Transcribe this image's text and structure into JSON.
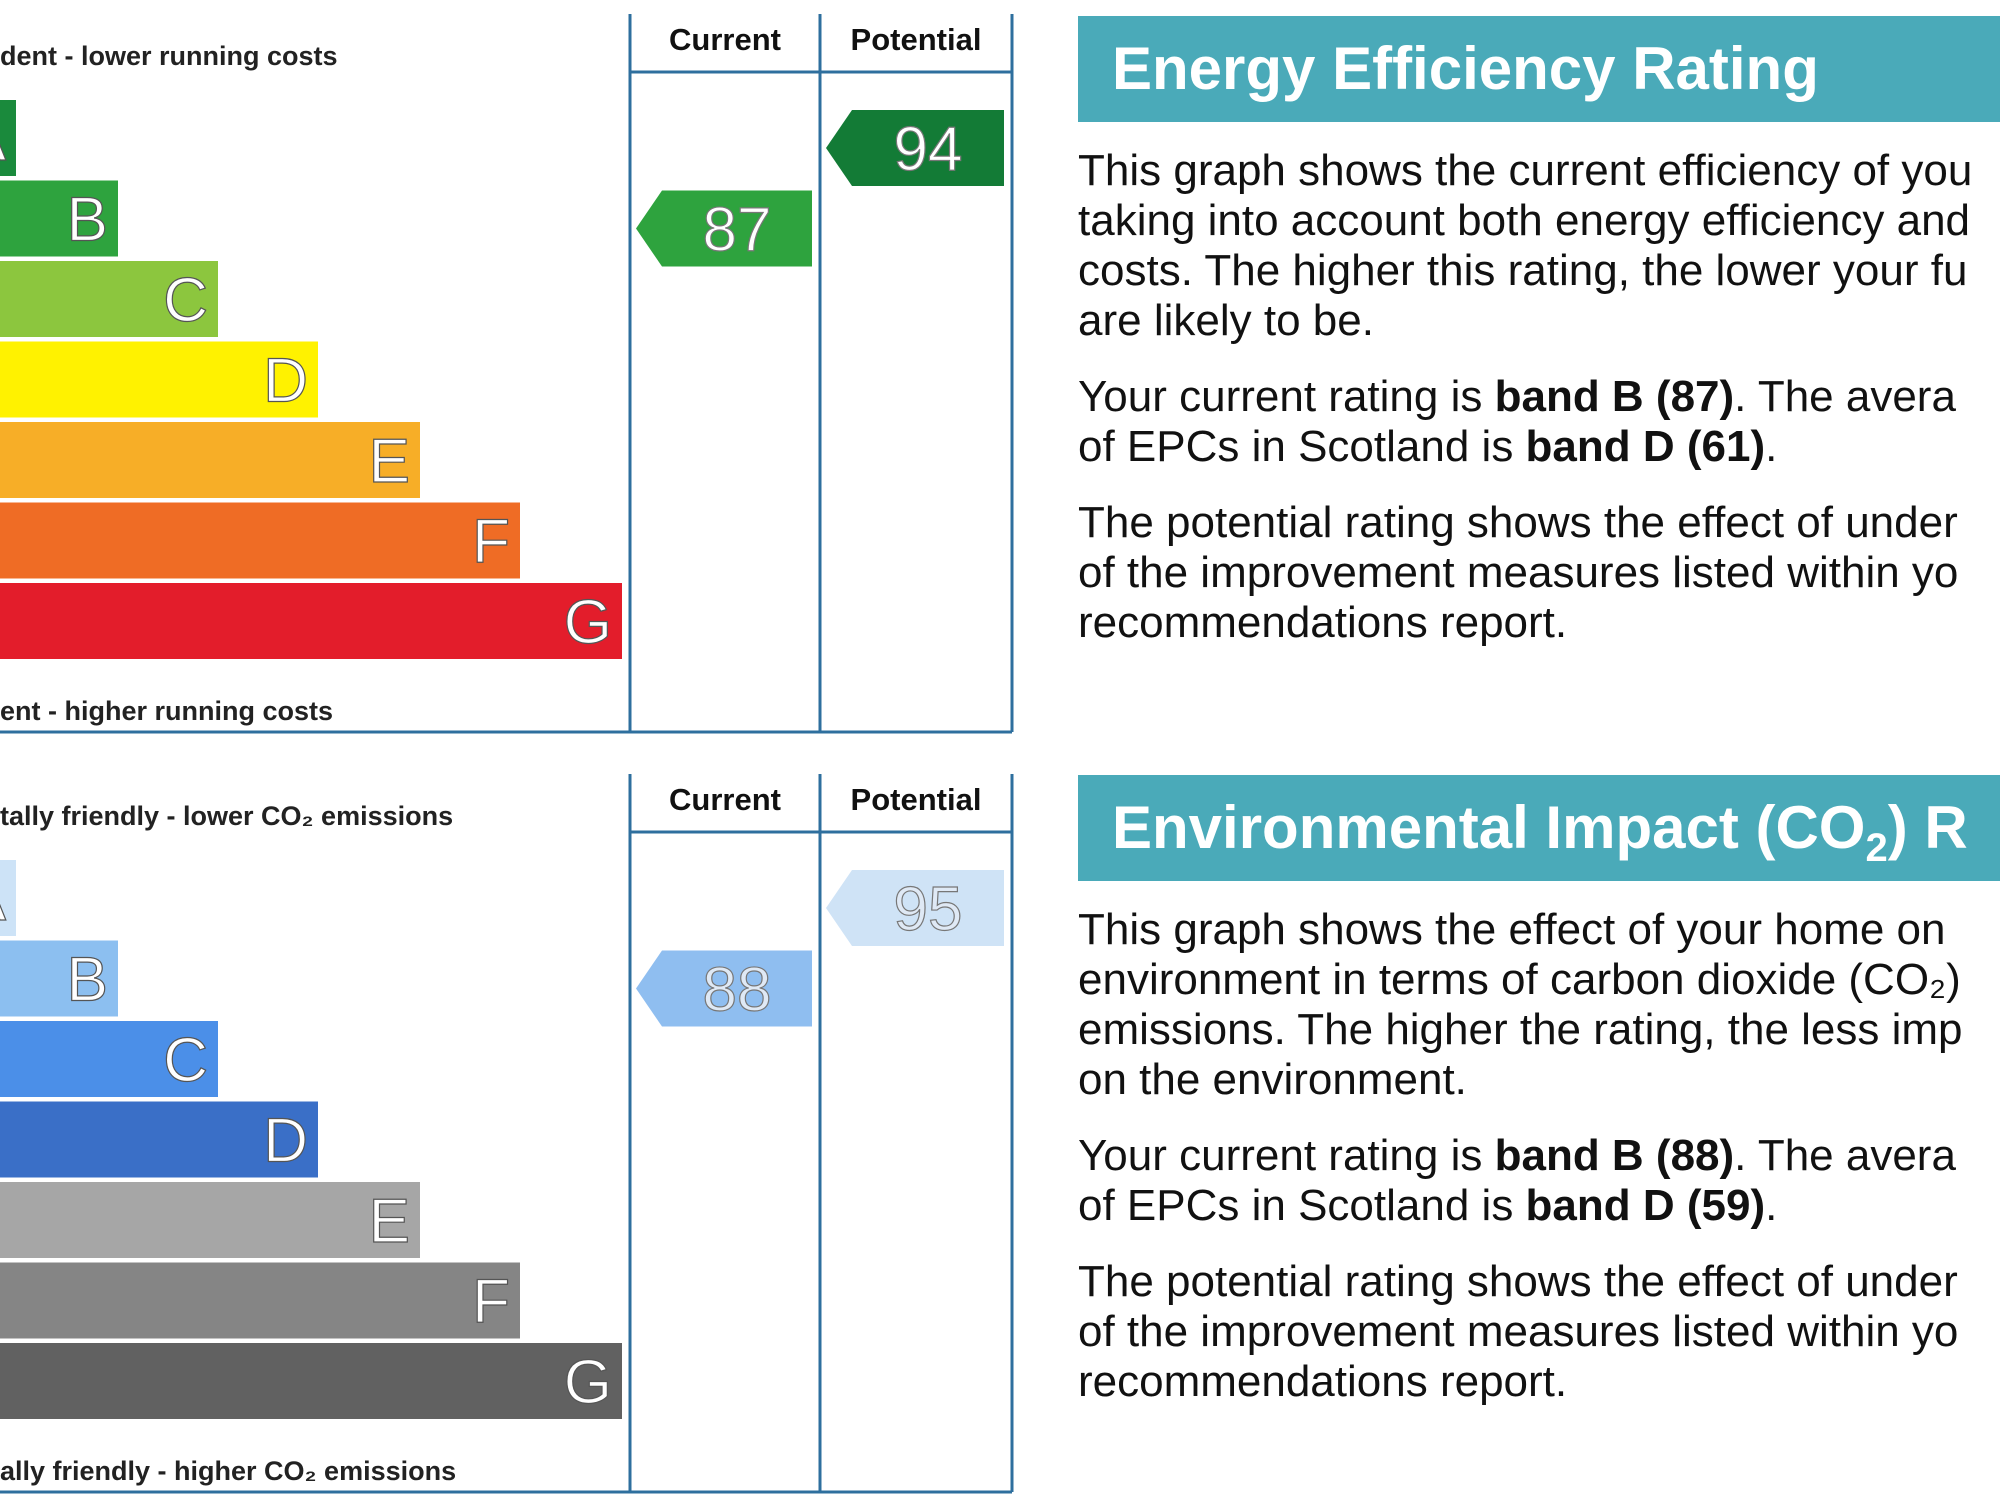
{
  "chart_data": [
    {
      "type": "bar",
      "chart": "energy_efficiency",
      "top_caption": "dent - lower running costs",
      "bottom_caption": "ent - higher running costs",
      "bands": [
        {
          "label": "A",
          "color": "#1a8a3c"
        },
        {
          "label": "B",
          "color": "#2ea33e"
        },
        {
          "label": "C",
          "color": "#8cc63e"
        },
        {
          "label": "D",
          "color": "#fff200"
        },
        {
          "label": "E",
          "color": "#f7ae27"
        },
        {
          "label": "F",
          "color": "#ef6c25"
        },
        {
          "label": "G",
          "color": "#e31d2b"
        }
      ],
      "columns": [
        "Current",
        "Potential"
      ],
      "current": {
        "value": 87,
        "band": "B",
        "color": "#2ea33e",
        "text_color": "#ffffff"
      },
      "potential": {
        "value": 94,
        "band": "A",
        "color": "#137b36",
        "text_color": "#ffffff"
      }
    },
    {
      "type": "bar",
      "chart": "environmental_impact",
      "top_caption": "tally friendly - lower CO₂ emissions",
      "bottom_caption": "ally friendly - higher CO₂ emissions",
      "bands": [
        {
          "label": "A",
          "color": "#cde3f7"
        },
        {
          "label": "B",
          "color": "#8cbff0"
        },
        {
          "label": "C",
          "color": "#4b8fe8"
        },
        {
          "label": "D",
          "color": "#3a6fc7"
        },
        {
          "label": "E",
          "color": "#a6a6a6"
        },
        {
          "label": "F",
          "color": "#858585"
        },
        {
          "label": "G",
          "color": "#616161"
        }
      ],
      "columns": [
        "Current",
        "Potential"
      ],
      "current": {
        "value": 88,
        "band": "B",
        "color": "#8fbef0",
        "text_color": "#dfe9f5"
      },
      "potential": {
        "value": 95,
        "band": "A",
        "color": "#cfe3f6",
        "text_color": "#dfe9f5"
      }
    }
  ],
  "panels": {
    "energy": {
      "title": "Energy Efficiency Rating",
      "p1": "This graph shows the current efficiency of your home, taking into account both energy efficiency and fuel costs. The higher this rating, the lower your fuel bills are likely to be.",
      "p1_lines": [
        "This graph shows the current efficiency of you",
        "taking into account both energy efficiency and",
        "costs. The higher this rating, the lower your fu",
        "are likely to be."
      ],
      "p2_pre": "Your current rating is ",
      "p2_bold1": "band B (87)",
      "p2_mid": ". The avera",
      "p2_line2_pre": "of EPCs in Scotland is ",
      "p2_bold2": "band D (61)",
      "p2_end": ".",
      "p3_lines": [
        "The potential rating shows the effect of under",
        "of the improvement measures listed within yo",
        "recommendations report."
      ]
    },
    "environment": {
      "title_pre": "Environmental Impact (CO",
      "title_sub": "2",
      "title_post": ") R",
      "p1_lines": [
        "This graph shows the effect of your home on",
        "environment in terms of carbon dioxide (CO₂)",
        "emissions. The higher the rating, the less imp",
        "on the environment."
      ],
      "p2_pre": "Your current rating is ",
      "p2_bold1": "band B (88)",
      "p2_mid": ". The avera",
      "p2_line2_pre": "of EPCs in Scotland is ",
      "p2_bold2": "band D (59)",
      "p2_end": ".",
      "p3_lines": [
        "The potential rating shows the effect of under",
        "of the improvement measures listed within yo",
        "recommendations report."
      ]
    }
  },
  "frame_color": "#2e6f9e"
}
